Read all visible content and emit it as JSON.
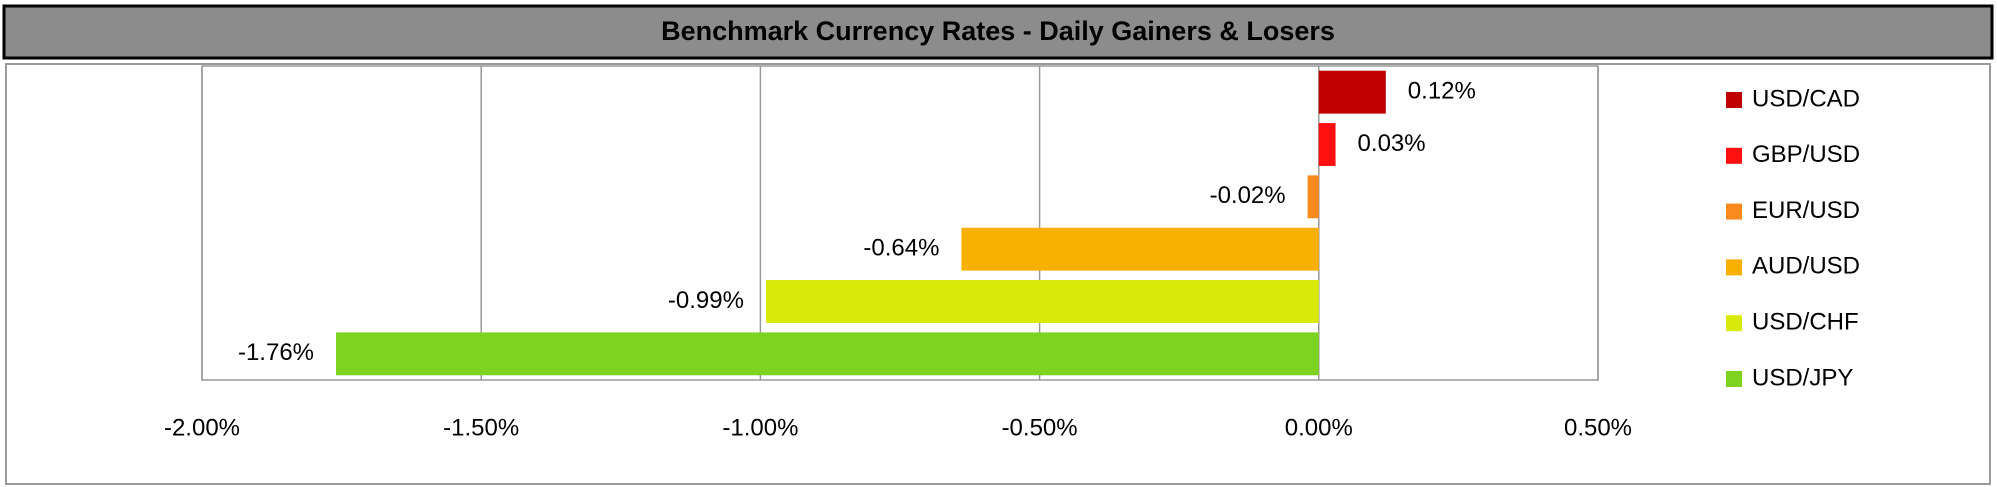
{
  "chart_data": {
    "type": "bar",
    "orientation": "horizontal",
    "title": "Benchmark Currency Rates - Daily Gainers & Losers",
    "categories": [
      "USD/CAD",
      "GBP/USD",
      "EUR/USD",
      "AUD/USD",
      "USD/CHF",
      "USD/JPY"
    ],
    "values": [
      0.12,
      0.03,
      -0.02,
      -0.64,
      -0.99,
      -1.76
    ],
    "value_labels": [
      "0.12%",
      "0.03%",
      "-0.02%",
      "-0.64%",
      "-0.99%",
      "-1.76%"
    ],
    "colors": [
      "#c00000",
      "#ff1010",
      "#fb8a1e",
      "#f9b000",
      "#d8ea0a",
      "#7ed321"
    ],
    "xlim": [
      -2,
      0.5
    ],
    "xticks": [
      {
        "value": -2,
        "label": "-2.00%"
      },
      {
        "value": -1.5,
        "label": "-1.50%"
      },
      {
        "value": -1,
        "label": "-1.00%"
      },
      {
        "value": -0.5,
        "label": "-0.50%"
      },
      {
        "value": 0,
        "label": "0.00%"
      },
      {
        "value": 0.5,
        "label": "0.50%"
      }
    ],
    "grid": true,
    "legend": "right"
  }
}
